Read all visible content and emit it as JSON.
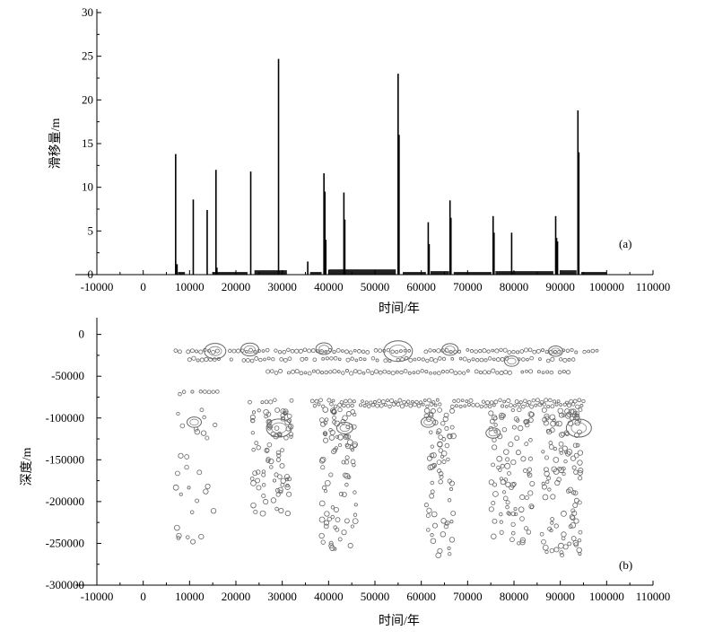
{
  "chart_data": [
    {
      "type": "bar",
      "panel_label": "(a)",
      "xlabel": "时间/年",
      "ylabel": "滑移量/m",
      "xlim": [
        -10000,
        110000
      ],
      "ylim": [
        0,
        30
      ],
      "x_ticks": [
        -10000,
        0,
        10000,
        20000,
        30000,
        40000,
        50000,
        60000,
        70000,
        80000,
        90000,
        100000,
        110000
      ],
      "y_ticks": [
        0,
        5,
        10,
        15,
        20,
        25,
        30
      ],
      "grid": false,
      "series": [
        {
          "x": [
            7000,
            7300,
            10800,
            13800,
            15700,
            15900,
            23200,
            29200,
            35500,
            39000,
            39200,
            39400,
            43300,
            43500,
            55000,
            55200,
            61500,
            61700,
            66200,
            66400,
            75500,
            75700,
            79500,
            89000,
            89200,
            89400,
            93800,
            94000
          ],
          "values": [
            13.8,
            1.2,
            8.6,
            7.4,
            12.0,
            0.8,
            11.8,
            24.7,
            1.5,
            11.6,
            9.5,
            4.0,
            9.4,
            6.3,
            23.0,
            16.0,
            6.0,
            3.5,
            8.5,
            6.5,
            6.7,
            4.8,
            4.8,
            6.7,
            4.2,
            3.8,
            18.8,
            14.0
          ]
        }
      ],
      "background_segments": [
        {
          "start": 7500,
          "end": 9000,
          "value": 0.3
        },
        {
          "start": 15000,
          "end": 22500,
          "value": 0.3
        },
        {
          "start": 24000,
          "end": 31000,
          "value": 0.5
        },
        {
          "start": 36000,
          "end": 38500,
          "value": 0.3
        },
        {
          "start": 40000,
          "end": 54500,
          "value": 0.6
        },
        {
          "start": 56000,
          "end": 61000,
          "value": 0.3
        },
        {
          "start": 62000,
          "end": 66000,
          "value": 0.4
        },
        {
          "start": 67000,
          "end": 75000,
          "value": 0.3
        },
        {
          "start": 76000,
          "end": 88500,
          "value": 0.4
        },
        {
          "start": 90000,
          "end": 93500,
          "value": 0.5
        },
        {
          "start": 94500,
          "end": 100000,
          "value": 0.3
        }
      ]
    },
    {
      "type": "scatter",
      "panel_label": "(b)",
      "xlabel": "时间/年",
      "ylabel": "深度/m",
      "xlim": [
        -10000,
        110000
      ],
      "ylim": [
        -300000,
        20000
      ],
      "x_ticks": [
        -10000,
        0,
        10000,
        20000,
        30000,
        40000,
        50000,
        60000,
        70000,
        80000,
        90000,
        100000,
        110000
      ],
      "y_ticks": [
        0,
        -50000,
        -100000,
        -150000,
        -200000,
        -250000,
        -300000
      ],
      "grid": false,
      "marker": "open-circle",
      "bands": [
        {
          "depth": -20000,
          "start": 7000,
          "end": 98000
        },
        {
          "depth": -30000,
          "start": 10000,
          "end": 93000
        },
        {
          "depth": -45000,
          "start": 26000,
          "end": 92000
        },
        {
          "depth": -70000,
          "start": 7000,
          "end": 16000
        },
        {
          "depth": -80000,
          "start": 23000,
          "end": 95000
        },
        {
          "depth": -85000,
          "start": 37000,
          "end": 95000
        }
      ],
      "clusters": [
        {
          "x_start": 7000,
          "x_end": 16000,
          "depth_start": -90000,
          "depth_end": -260000,
          "count": 28
        },
        {
          "x_start": 23500,
          "x_end": 32000,
          "depth_start": -90000,
          "depth_end": -215000,
          "count": 85
        },
        {
          "x_start": 38500,
          "x_end": 46000,
          "depth_start": -90000,
          "depth_end": -260000,
          "count": 90
        },
        {
          "x_start": 61000,
          "x_end": 67000,
          "depth_start": -90000,
          "depth_end": -265000,
          "count": 70
        },
        {
          "x_start": 75000,
          "x_end": 84000,
          "depth_start": -90000,
          "depth_end": -250000,
          "count": 90
        },
        {
          "x_start": 86000,
          "x_end": 94500,
          "depth_start": -90000,
          "depth_end": -265000,
          "count": 120
        }
      ],
      "large_events": [
        {
          "x": 11000,
          "depth": -105000,
          "size": 8
        },
        {
          "x": 15500,
          "depth": -20000,
          "size": 12
        },
        {
          "x": 23000,
          "depth": -18000,
          "size": 10
        },
        {
          "x": 29300,
          "depth": -112000,
          "size": 14
        },
        {
          "x": 39000,
          "depth": -17000,
          "size": 9
        },
        {
          "x": 43500,
          "depth": -112000,
          "size": 9
        },
        {
          "x": 55000,
          "depth": -20000,
          "size": 16
        },
        {
          "x": 61500,
          "depth": -105000,
          "size": 8
        },
        {
          "x": 66200,
          "depth": -18000,
          "size": 9
        },
        {
          "x": 75500,
          "depth": -118000,
          "size": 8
        },
        {
          "x": 79500,
          "depth": -32000,
          "size": 8
        },
        {
          "x": 89000,
          "depth": -20000,
          "size": 8
        },
        {
          "x": 94000,
          "depth": -112000,
          "size": 14
        }
      ]
    }
  ]
}
